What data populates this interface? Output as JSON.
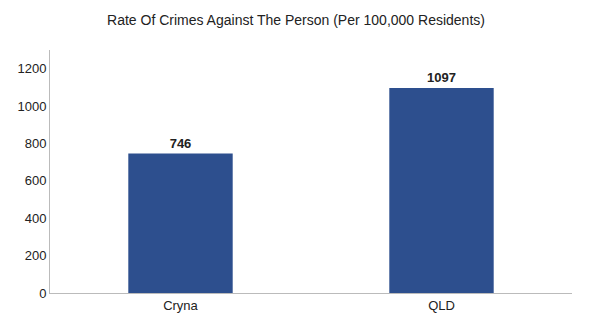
{
  "chart_data": {
    "type": "bar",
    "title": "Rate Of Crimes Against The Person (Per 100,000 Residents)",
    "categories": [
      "Cryna",
      "QLD"
    ],
    "values": [
      746,
      1097
    ],
    "color": "#2d4f8e",
    "ylim": [
      0,
      1300
    ],
    "yticks": [
      0,
      200,
      400,
      600,
      800,
      1000,
      1200
    ],
    "grid": false,
    "data_labels": true
  }
}
